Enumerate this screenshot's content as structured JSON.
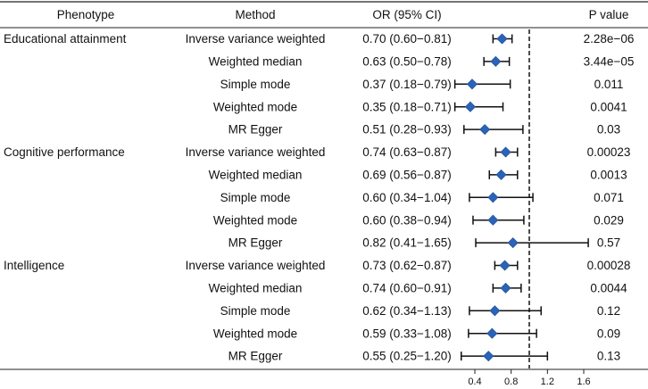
{
  "chart_data": {
    "type": "forest",
    "headers": {
      "phenotype": "Phenotype",
      "method": "Method",
      "or": "OR (95% CI)",
      "pvalue": "P value"
    },
    "reference_line": 1.0,
    "xlim": [
      0.2,
      1.7
    ],
    "xticks": [
      0.4,
      0.8,
      1.2,
      1.6
    ],
    "xtick_labels": [
      "0.4",
      "0.8",
      "1.2",
      "1.6"
    ],
    "marker_color": "#2a63b8",
    "groups": [
      {
        "phenotype": "Educational attainment",
        "rows": [
          {
            "method": "Inverse variance weighted",
            "or": 0.7,
            "lower": 0.6,
            "upper": 0.81,
            "or_text": "0.70 (0.60−0.81)",
            "p": "2.28e−06"
          },
          {
            "method": "Weighted median",
            "or": 0.63,
            "lower": 0.5,
            "upper": 0.78,
            "or_text": "0.63 (0.50−0.78)",
            "p": "3.44e−05"
          },
          {
            "method": "Simple mode",
            "or": 0.37,
            "lower": 0.18,
            "upper": 0.79,
            "or_text": "0.37 (0.18−0.79)",
            "p": "0.011"
          },
          {
            "method": "Weighted mode",
            "or": 0.35,
            "lower": 0.18,
            "upper": 0.71,
            "or_text": "0.35 (0.18−0.71)",
            "p": "0.0041"
          },
          {
            "method": "MR Egger",
            "or": 0.51,
            "lower": 0.28,
            "upper": 0.93,
            "or_text": "0.51 (0.28−0.93)",
            "p": "0.03"
          }
        ]
      },
      {
        "phenotype": "Cognitive performance",
        "rows": [
          {
            "method": "Inverse variance weighted",
            "or": 0.74,
            "lower": 0.63,
            "upper": 0.87,
            "or_text": "0.74 (0.63−0.87)",
            "p": "0.00023"
          },
          {
            "method": "Weighted median",
            "or": 0.69,
            "lower": 0.56,
            "upper": 0.87,
            "or_text": "0.69 (0.56−0.87)",
            "p": "0.0013"
          },
          {
            "method": "Simple mode",
            "or": 0.6,
            "lower": 0.34,
            "upper": 1.04,
            "or_text": "0.60 (0.34−1.04)",
            "p": "0.071"
          },
          {
            "method": "Weighted mode",
            "or": 0.6,
            "lower": 0.38,
            "upper": 0.94,
            "or_text": "0.60 (0.38−0.94)",
            "p": "0.029"
          },
          {
            "method": "MR Egger",
            "or": 0.82,
            "lower": 0.41,
            "upper": 1.65,
            "or_text": "0.82 (0.41−1.65)",
            "p": "0.57"
          }
        ]
      },
      {
        "phenotype": "Intelligence",
        "rows": [
          {
            "method": "Inverse variance weighted",
            "or": 0.73,
            "lower": 0.62,
            "upper": 0.87,
            "or_text": "0.73 (0.62−0.87)",
            "p": "0.00028"
          },
          {
            "method": "Weighted median",
            "or": 0.74,
            "lower": 0.6,
            "upper": 0.91,
            "or_text": "0.74 (0.60−0.91)",
            "p": "0.0044"
          },
          {
            "method": "Simple mode",
            "or": 0.62,
            "lower": 0.34,
            "upper": 1.13,
            "or_text": "0.62 (0.34−1.13)",
            "p": "0.12"
          },
          {
            "method": "Weighted mode",
            "or": 0.59,
            "lower": 0.33,
            "upper": 1.08,
            "or_text": "0.59 (0.33−1.08)",
            "p": "0.09"
          },
          {
            "method": "MR Egger",
            "or": 0.55,
            "lower": 0.25,
            "upper": 1.2,
            "or_text": "0.55 (0.25−1.20)",
            "p": "0.13"
          }
        ]
      }
    ]
  }
}
